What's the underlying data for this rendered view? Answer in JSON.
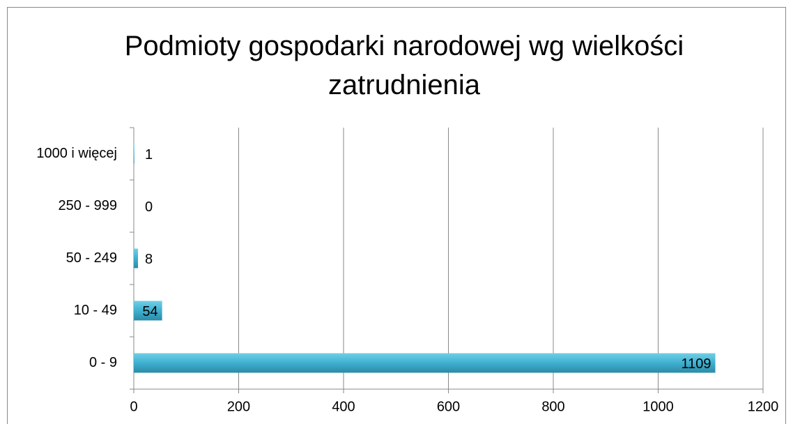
{
  "chart_data": {
    "type": "bar",
    "orientation": "horizontal",
    "title": "Podmioty gospodarki narodowej wg wielkości zatrudnienia",
    "categories": [
      "0 - 9",
      "10 - 49",
      "50 - 249",
      "250 - 999",
      "1000 i więcej"
    ],
    "values": [
      1109,
      54,
      8,
      0,
      1
    ],
    "color": "#4bacc6",
    "xlim": [
      0,
      1200
    ],
    "xticks": [
      0,
      200,
      400,
      600,
      800,
      1000,
      1200
    ],
    "grid": true
  }
}
